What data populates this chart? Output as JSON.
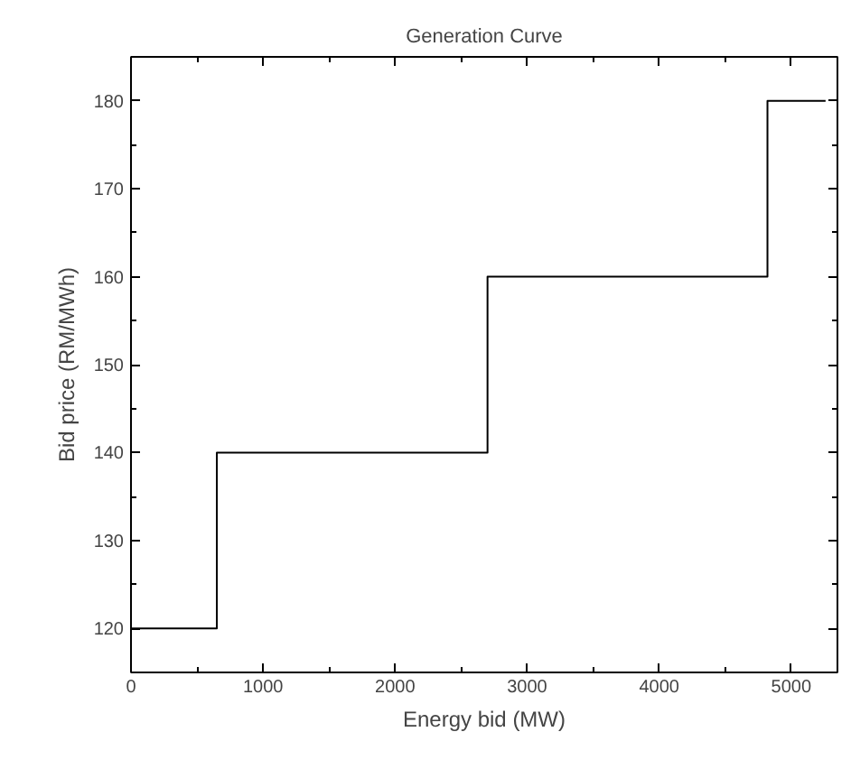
{
  "chart_data": {
    "type": "step",
    "title": "Generation Curve",
    "xlabel": "Energy bid (MW)",
    "ylabel": "Bid price (RM/MWh)",
    "x": [
      0,
      650,
      2700,
      4820,
      5260
    ],
    "series": [
      {
        "color": "#000000",
        "values": [
          120,
          140,
          160,
          180,
          180
        ]
      }
    ],
    "xlim": [
      0,
      5350
    ],
    "xticks": [
      0,
      1000,
      2000,
      3000,
      4000,
      5000
    ],
    "ylim": [
      115,
      185
    ],
    "yticks": [
      120,
      130,
      140,
      150,
      160,
      170,
      180
    ],
    "grid": false
  }
}
